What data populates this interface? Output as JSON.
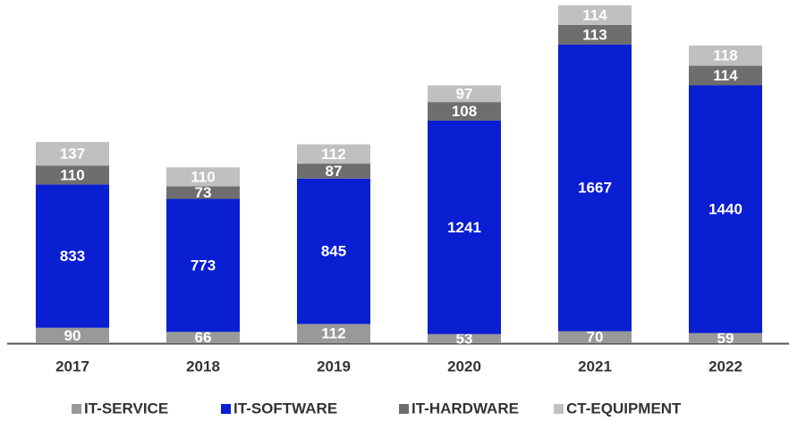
{
  "chart_data": {
    "type": "stacked_bar",
    "categories": [
      "2017",
      "2018",
      "2019",
      "2020",
      "2021",
      "2022"
    ],
    "series": [
      {
        "name": "IT-SERVICE",
        "color": "#999999",
        "values": [
          90,
          66,
          112,
          53,
          70,
          59
        ]
      },
      {
        "name": "IT-SOFTWARE",
        "color": "#0a1ed2",
        "values": [
          833,
          773,
          845,
          1241,
          1667,
          1440
        ]
      },
      {
        "name": "IT-HARDWARE",
        "color": "#6e6e6e",
        "values": [
          110,
          73,
          87,
          108,
          113,
          114
        ]
      },
      {
        "name": "CT-EQUIPMENT",
        "color": "#c0c0c0",
        "values": [
          137,
          110,
          112,
          97,
          114,
          118
        ]
      }
    ]
  }
}
